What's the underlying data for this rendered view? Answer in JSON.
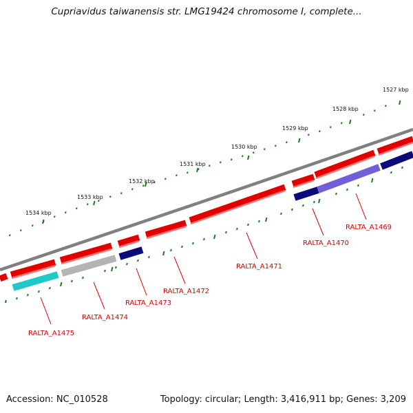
{
  "title": "Cupriavidus taiwanensis str. LMG19424 chromosome I, complete...",
  "footer": {
    "accession": "Accession: NC_010528",
    "summary": "Topology: circular; Length: 3,416,911 bp; Genes: 3,209"
  },
  "scale_labels": [
    "1527 kbp",
    "1528 kbp",
    "1529 kbp",
    "1530 kbp",
    "1531 kbp",
    "1532 kbp",
    "1533 kbp",
    "1534 kbp"
  ],
  "gene_labels": [
    "RALTA_A1469",
    "RALTA_A1470",
    "RALTA_A1471",
    "RALTA_A1472",
    "RALTA_A1473",
    "RALTA_A1474",
    "RALTA_A1475"
  ],
  "colors": {
    "gene_red": "#e00000",
    "backbone": "#808080",
    "tick_green": "#1a7a1a",
    "label_red": "#d40000",
    "cog_navy": "#0a0a78",
    "cog_purple": "#7060d8",
    "cog_grey": "#b4b4b4",
    "cog_cyan": "#20c8c8"
  }
}
